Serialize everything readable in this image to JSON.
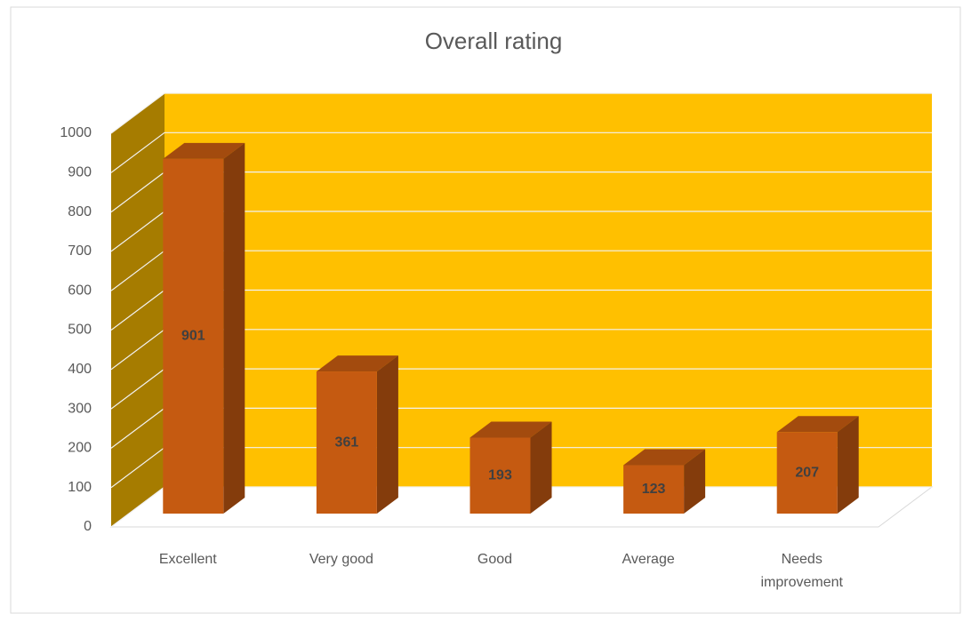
{
  "chart_data": {
    "type": "bar3d",
    "title": "Overall rating",
    "categories": [
      "Excellent",
      "Very good",
      "Good",
      "Average",
      "Needs improvement"
    ],
    "values": [
      901,
      361,
      193,
      123,
      207
    ],
    "color": "#c55a11",
    "wall_color": "#ffc000",
    "ylim": [
      0,
      1000
    ],
    "yticks": [
      0,
      100,
      200,
      300,
      400,
      500,
      600,
      700,
      800,
      900,
      1000
    ],
    "grid": true
  }
}
